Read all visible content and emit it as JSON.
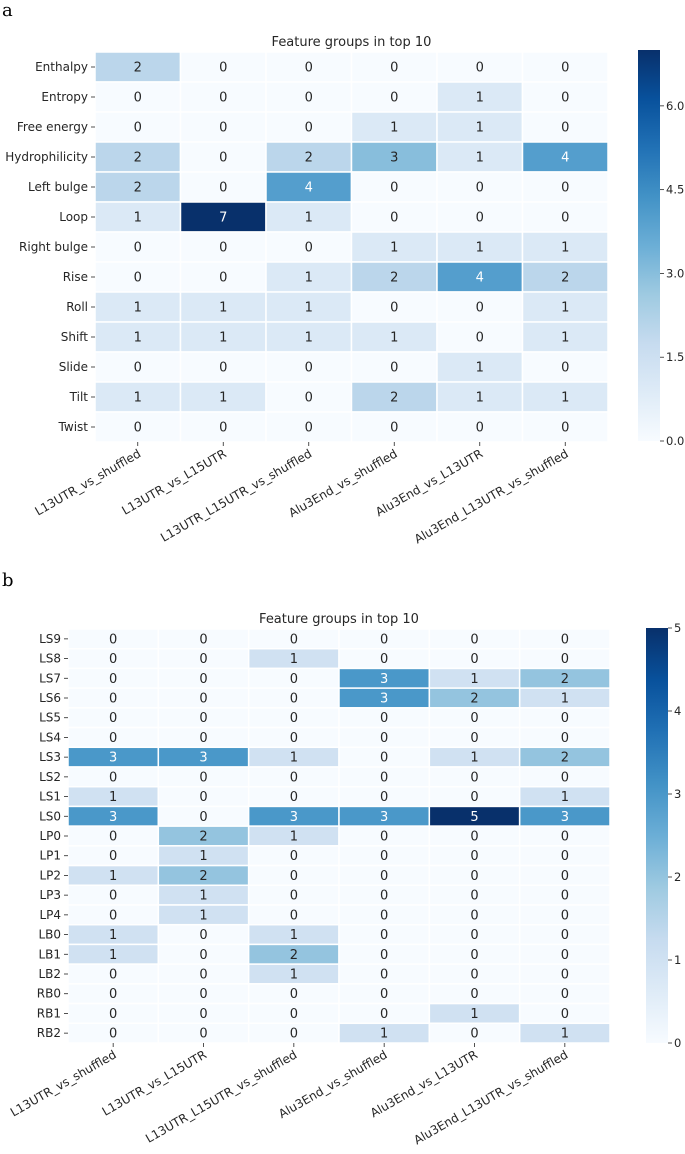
{
  "panels": {
    "a_label": "a",
    "b_label": "b"
  },
  "chart_data": [
    {
      "type": "heatmap",
      "title": "Feature groups in top 10",
      "rows": [
        "Enthalpy",
        "Entropy",
        "Free energy",
        "Hydrophilicity",
        "Left bulge",
        "Loop",
        "Right bulge",
        "Rise",
        "Roll",
        "Shift",
        "Slide",
        "Tilt",
        "Twist"
      ],
      "columns": [
        "L13UTR_vs_shuffled",
        "L13UTR_vs_L15UTR",
        "L13UTR_L15UTR_vs_shuffled",
        "Alu3End_vs_shuffled",
        "Alu3End_vs_L13UTR",
        "Alu3End_L13UTR_vs_shuffled"
      ],
      "values": [
        [
          2,
          0,
          0,
          0,
          0,
          0
        ],
        [
          0,
          0,
          0,
          0,
          1,
          0
        ],
        [
          0,
          0,
          0,
          1,
          1,
          0
        ],
        [
          2,
          0,
          2,
          3,
          1,
          4
        ],
        [
          2,
          0,
          4,
          0,
          0,
          0
        ],
        [
          1,
          7,
          1,
          0,
          0,
          0
        ],
        [
          0,
          0,
          0,
          1,
          1,
          1
        ],
        [
          0,
          0,
          1,
          2,
          4,
          2
        ],
        [
          1,
          1,
          1,
          0,
          0,
          1
        ],
        [
          1,
          1,
          1,
          1,
          0,
          1
        ],
        [
          0,
          0,
          0,
          0,
          1,
          0
        ],
        [
          1,
          1,
          0,
          2,
          1,
          1
        ],
        [
          0,
          0,
          0,
          0,
          0,
          0
        ]
      ],
      "colorbar": {
        "range": [
          0,
          7
        ],
        "ticks": [
          "0.0",
          "1.5",
          "3.0",
          "4.5",
          "6.0"
        ],
        "tick_values": [
          0,
          1.5,
          3.0,
          4.5,
          6.0
        ]
      },
      "colormap": "Blues"
    },
    {
      "type": "heatmap",
      "title": "Feature groups in top 10",
      "rows": [
        "LS9",
        "LS8",
        "LS7",
        "LS6",
        "LS5",
        "LS4",
        "LS3",
        "LS2",
        "LS1",
        "LS0",
        "LP0",
        "LP1",
        "LP2",
        "LP3",
        "LP4",
        "LB0",
        "LB1",
        "LB2",
        "RB0",
        "RB1",
        "RB2"
      ],
      "columns": [
        "L13UTR_vs_shuffled",
        "L13UTR_vs_L15UTR",
        "L13UTR_L15UTR_vs_shuffled",
        "Alu3End_vs_shuffled",
        "Alu3End_vs_L13UTR",
        "Alu3End_L13UTR_vs_shuffled"
      ],
      "values": [
        [
          0,
          0,
          0,
          0,
          0,
          0
        ],
        [
          0,
          0,
          1,
          0,
          0,
          0
        ],
        [
          0,
          0,
          0,
          3,
          1,
          2
        ],
        [
          0,
          0,
          0,
          3,
          2,
          1
        ],
        [
          0,
          0,
          0,
          0,
          0,
          0
        ],
        [
          0,
          0,
          0,
          0,
          0,
          0
        ],
        [
          3,
          3,
          1,
          0,
          1,
          2
        ],
        [
          0,
          0,
          0,
          0,
          0,
          0
        ],
        [
          1,
          0,
          0,
          0,
          0,
          1
        ],
        [
          3,
          0,
          3,
          3,
          5,
          3
        ],
        [
          0,
          2,
          1,
          0,
          0,
          0
        ],
        [
          0,
          1,
          0,
          0,
          0,
          0
        ],
        [
          1,
          2,
          0,
          0,
          0,
          0
        ],
        [
          0,
          1,
          0,
          0,
          0,
          0
        ],
        [
          0,
          1,
          0,
          0,
          0,
          0
        ],
        [
          1,
          0,
          1,
          0,
          0,
          0
        ],
        [
          1,
          0,
          2,
          0,
          0,
          0
        ],
        [
          0,
          0,
          1,
          0,
          0,
          0
        ],
        [
          0,
          0,
          0,
          0,
          0,
          0
        ],
        [
          0,
          0,
          0,
          0,
          1,
          0
        ],
        [
          0,
          0,
          0,
          1,
          0,
          1
        ]
      ],
      "colorbar": {
        "range": [
          0,
          5
        ],
        "ticks": [
          "0",
          "1",
          "2",
          "3",
          "4",
          "5"
        ],
        "tick_values": [
          0,
          1,
          2,
          3,
          4,
          5
        ]
      },
      "colormap": "Blues"
    }
  ]
}
